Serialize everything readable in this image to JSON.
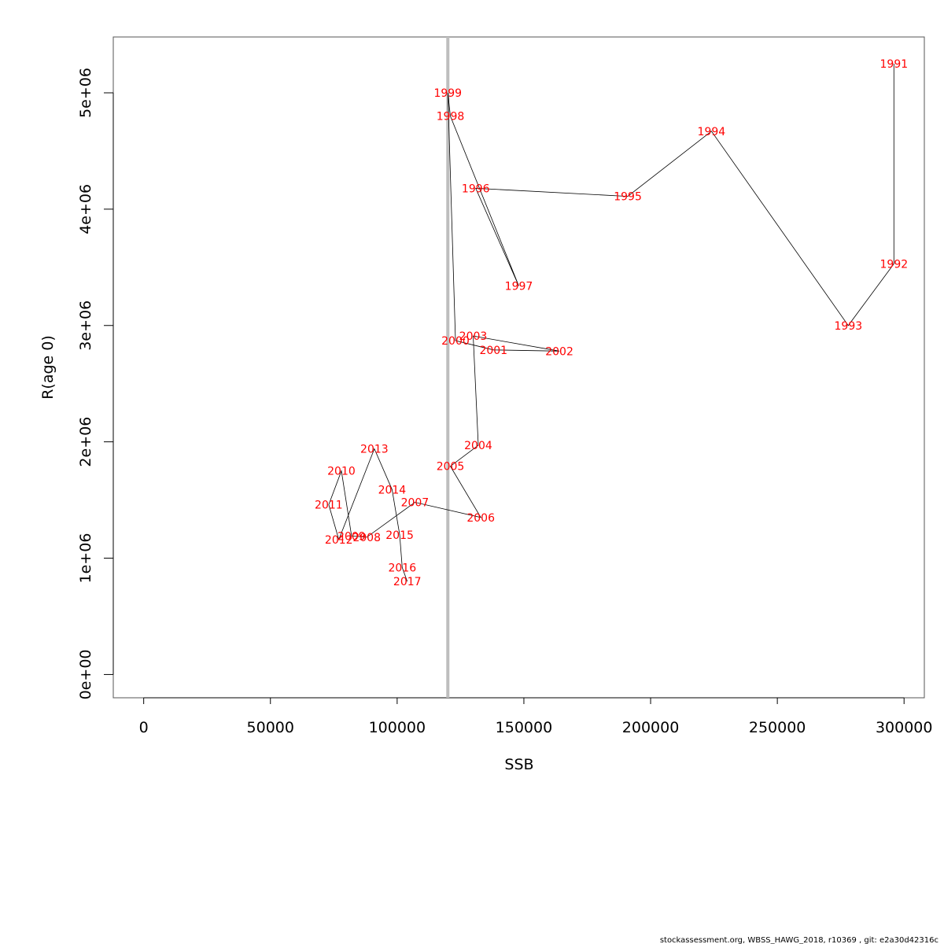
{
  "chart_data": {
    "type": "line",
    "xlabel": "SSB",
    "ylabel": "R(age 0)",
    "xlim": [
      -12000,
      308000
    ],
    "ylim": [
      -200000,
      5480000
    ],
    "x_ticks": [
      {
        "value": 0,
        "label": "0"
      },
      {
        "value": 50000,
        "label": "50000"
      },
      {
        "value": 100000,
        "label": "100000"
      },
      {
        "value": 150000,
        "label": "150000"
      },
      {
        "value": 200000,
        "label": "200000"
      },
      {
        "value": 250000,
        "label": "250000"
      },
      {
        "value": 300000,
        "label": "300000"
      }
    ],
    "y_ticks": [
      {
        "value": 0,
        "label": "0e+00"
      },
      {
        "value": 1000000,
        "label": "1e+06"
      },
      {
        "value": 2000000,
        "label": "2e+06"
      },
      {
        "value": 3000000,
        "label": "3e+06"
      },
      {
        "value": 4000000,
        "label": "4e+06"
      },
      {
        "value": 5000000,
        "label": "5e+06"
      }
    ],
    "reference_line": {
      "axis": "x",
      "value": 120000,
      "color": "#bebebe"
    },
    "line_color": "#000000",
    "label_color": "#ff0000",
    "points": [
      {
        "year": "1991",
        "ssb": 296000,
        "r": 5250000
      },
      {
        "year": "1992",
        "ssb": 296000,
        "r": 3530000
      },
      {
        "year": "1993",
        "ssb": 278000,
        "r": 3000000
      },
      {
        "year": "1994",
        "ssb": 224000,
        "r": 4670000
      },
      {
        "year": "1995",
        "ssb": 191000,
        "r": 4110000
      },
      {
        "year": "1996",
        "ssb": 131000,
        "r": 4180000
      },
      {
        "year": "1997",
        "ssb": 148000,
        "r": 3340000
      },
      {
        "year": "1998",
        "ssb": 121000,
        "r": 4800000
      },
      {
        "year": "1999",
        "ssb": 120000,
        "r": 5000000
      },
      {
        "year": "2000",
        "ssb": 123000,
        "r": 2870000
      },
      {
        "year": "2001",
        "ssb": 138000,
        "r": 2790000
      },
      {
        "year": "2002",
        "ssb": 164000,
        "r": 2780000
      },
      {
        "year": "2003",
        "ssb": 130000,
        "r": 2910000
      },
      {
        "year": "2004",
        "ssb": 132000,
        "r": 1970000
      },
      {
        "year": "2005",
        "ssb": 121000,
        "r": 1790000
      },
      {
        "year": "2006",
        "ssb": 133000,
        "r": 1350000
      },
      {
        "year": "2007",
        "ssb": 107000,
        "r": 1480000
      },
      {
        "year": "2008",
        "ssb": 88000,
        "r": 1180000
      },
      {
        "year": "2009",
        "ssb": 82000,
        "r": 1190000
      },
      {
        "year": "2010",
        "ssb": 78000,
        "r": 1750000
      },
      {
        "year": "2011",
        "ssb": 73000,
        "r": 1460000
      },
      {
        "year": "2012",
        "ssb": 77000,
        "r": 1160000
      },
      {
        "year": "2013",
        "ssb": 91000,
        "r": 1940000
      },
      {
        "year": "2014",
        "ssb": 98000,
        "r": 1590000
      },
      {
        "year": "2015",
        "ssb": 101000,
        "r": 1200000
      },
      {
        "year": "2016",
        "ssb": 102000,
        "r": 920000
      },
      {
        "year": "2017",
        "ssb": 104000,
        "r": 800000
      }
    ]
  },
  "footer": "stockassessment.org, WBSS_HAWG_2018, r10369 , git: e2a30d42316c"
}
